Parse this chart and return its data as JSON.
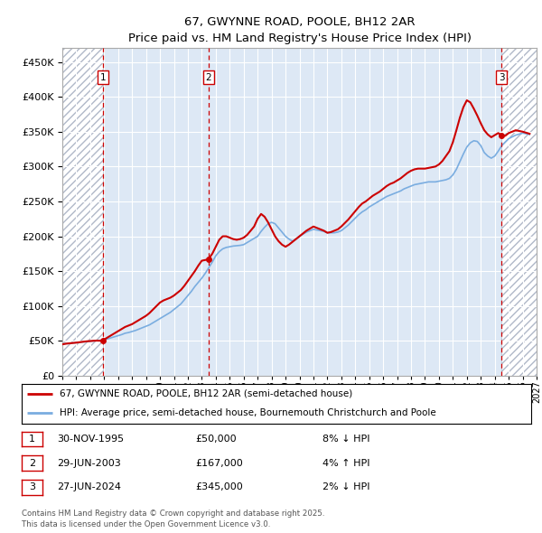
{
  "title": "67, GWYNNE ROAD, POOLE, BH12 2AR",
  "subtitle": "Price paid vs. HM Land Registry's House Price Index (HPI)",
  "ytick_values": [
    0,
    50000,
    100000,
    150000,
    200000,
    250000,
    300000,
    350000,
    400000,
    450000
  ],
  "ylim": [
    0,
    470000
  ],
  "xlim_start": 1993.0,
  "xlim_end": 2027.0,
  "hatch_left_end": 1995.92,
  "hatch_right_start": 2024.49,
  "bg_color": "#dde8f5",
  "hatch_facecolor": "#ffffff",
  "hatch_edgecolor": "#b0b8c8",
  "line1_color": "#cc0000",
  "line2_color": "#7aade0",
  "transaction_dates": [
    1995.92,
    2003.49,
    2024.49
  ],
  "transaction_prices": [
    50000,
    167000,
    345000
  ],
  "transaction_labels": [
    "1",
    "2",
    "3"
  ],
  "vline_color": "#cc0000",
  "legend_line1": "67, GWYNNE ROAD, POOLE, BH12 2AR (semi-detached house)",
  "legend_line2": "HPI: Average price, semi-detached house, Bournemouth Christchurch and Poole",
  "table_entries": [
    {
      "label": "1",
      "date": "30-NOV-1995",
      "price": "£50,000",
      "hpi": "8% ↓ HPI"
    },
    {
      "label": "2",
      "date": "29-JUN-2003",
      "price": "£167,000",
      "hpi": "4% ↑ HPI"
    },
    {
      "label": "3",
      "date": "27-JUN-2024",
      "price": "£345,000",
      "hpi": "2% ↓ HPI"
    }
  ],
  "footer": "Contains HM Land Registry data © Crown copyright and database right 2025.\nThis data is licensed under the Open Government Licence v3.0.",
  "hpi_x": [
    1993.0,
    1993.25,
    1993.5,
    1993.75,
    1994.0,
    1994.25,
    1994.5,
    1994.75,
    1995.0,
    1995.25,
    1995.5,
    1995.75,
    1996.0,
    1996.25,
    1996.5,
    1996.75,
    1997.0,
    1997.25,
    1997.5,
    1997.75,
    1998.0,
    1998.25,
    1998.5,
    1998.75,
    1999.0,
    1999.25,
    1999.5,
    1999.75,
    2000.0,
    2000.25,
    2000.5,
    2000.75,
    2001.0,
    2001.25,
    2001.5,
    2001.75,
    2002.0,
    2002.25,
    2002.5,
    2002.75,
    2003.0,
    2003.25,
    2003.5,
    2003.75,
    2004.0,
    2004.25,
    2004.5,
    2004.75,
    2005.0,
    2005.25,
    2005.5,
    2005.75,
    2006.0,
    2006.25,
    2006.5,
    2006.75,
    2007.0,
    2007.25,
    2007.5,
    2007.75,
    2008.0,
    2008.25,
    2008.5,
    2008.75,
    2009.0,
    2009.25,
    2009.5,
    2009.75,
    2010.0,
    2010.25,
    2010.5,
    2010.75,
    2011.0,
    2011.25,
    2011.5,
    2011.75,
    2012.0,
    2012.25,
    2012.5,
    2012.75,
    2013.0,
    2013.25,
    2013.5,
    2013.75,
    2014.0,
    2014.25,
    2014.5,
    2014.75,
    2015.0,
    2015.25,
    2015.5,
    2015.75,
    2016.0,
    2016.25,
    2016.5,
    2016.75,
    2017.0,
    2017.25,
    2017.5,
    2017.75,
    2018.0,
    2018.25,
    2018.5,
    2018.75,
    2019.0,
    2019.25,
    2019.5,
    2019.75,
    2020.0,
    2020.25,
    2020.5,
    2020.75,
    2021.0,
    2021.25,
    2021.5,
    2021.75,
    2022.0,
    2022.25,
    2022.5,
    2022.75,
    2023.0,
    2023.25,
    2023.5,
    2023.75,
    2024.0,
    2024.25,
    2024.5,
    2024.75,
    2025.0,
    2025.5,
    2026.0,
    2026.5
  ],
  "hpi_y": [
    45000,
    46000,
    46500,
    47000,
    47500,
    48000,
    48500,
    49000,
    49500,
    50000,
    50500,
    51000,
    52000,
    53000,
    54500,
    56000,
    57500,
    59000,
    61000,
    62000,
    63500,
    65000,
    67000,
    69000,
    71000,
    73000,
    76000,
    79000,
    82000,
    85000,
    88000,
    91000,
    95000,
    99000,
    103000,
    109000,
    115000,
    121000,
    128000,
    134000,
    140000,
    147000,
    155000,
    163000,
    172000,
    178000,
    182000,
    184000,
    185000,
    186000,
    186500,
    187000,
    188000,
    191000,
    194000,
    197000,
    200000,
    207000,
    213000,
    218000,
    220000,
    218000,
    212000,
    206000,
    200000,
    196000,
    193000,
    196000,
    200000,
    203000,
    206000,
    208000,
    210000,
    209000,
    208000,
    207000,
    205000,
    205000,
    205000,
    206000,
    208000,
    212000,
    216000,
    221000,
    226000,
    231000,
    235000,
    238000,
    242000,
    245000,
    248000,
    251000,
    254000,
    257000,
    259000,
    261000,
    263000,
    265000,
    268000,
    270000,
    272000,
    274000,
    275000,
    276000,
    277000,
    278000,
    278000,
    278000,
    279000,
    280000,
    281000,
    283000,
    288000,
    296000,
    307000,
    318000,
    328000,
    334000,
    337000,
    336000,
    330000,
    320000,
    315000,
    312000,
    315000,
    322000,
    330000,
    335000,
    340000,
    345000,
    348000,
    346000
  ],
  "price_x": [
    1993.0,
    1993.25,
    1993.5,
    1993.75,
    1994.0,
    1994.25,
    1994.5,
    1994.75,
    1995.0,
    1995.25,
    1995.5,
    1995.75,
    1995.92,
    1996.0,
    1996.25,
    1996.5,
    1996.75,
    1997.0,
    1997.25,
    1997.5,
    1997.75,
    1998.0,
    1998.25,
    1998.5,
    1998.75,
    1999.0,
    1999.25,
    1999.5,
    1999.75,
    2000.0,
    2000.25,
    2000.5,
    2000.75,
    2001.0,
    2001.25,
    2001.5,
    2001.75,
    2002.0,
    2002.25,
    2002.5,
    2002.75,
    2003.0,
    2003.25,
    2003.49,
    2003.5,
    2003.75,
    2004.0,
    2004.25,
    2004.5,
    2004.75,
    2005.0,
    2005.25,
    2005.5,
    2005.75,
    2006.0,
    2006.25,
    2006.5,
    2006.75,
    2007.0,
    2007.25,
    2007.5,
    2007.75,
    2008.0,
    2008.25,
    2008.5,
    2008.75,
    2009.0,
    2009.25,
    2009.5,
    2009.75,
    2010.0,
    2010.25,
    2010.5,
    2010.75,
    2011.0,
    2011.25,
    2011.5,
    2011.75,
    2012.0,
    2012.25,
    2012.5,
    2012.75,
    2013.0,
    2013.25,
    2013.5,
    2013.75,
    2014.0,
    2014.25,
    2014.5,
    2014.75,
    2015.0,
    2015.25,
    2015.5,
    2015.75,
    2016.0,
    2016.25,
    2016.5,
    2016.75,
    2017.0,
    2017.25,
    2017.5,
    2017.75,
    2018.0,
    2018.25,
    2018.5,
    2018.75,
    2019.0,
    2019.25,
    2019.5,
    2019.75,
    2020.0,
    2020.25,
    2020.5,
    2020.75,
    2021.0,
    2021.25,
    2021.5,
    2021.75,
    2022.0,
    2022.25,
    2022.5,
    2022.75,
    2023.0,
    2023.25,
    2023.5,
    2023.75,
    2024.0,
    2024.25,
    2024.49,
    2024.75,
    2025.0,
    2025.5,
    2026.0,
    2026.5
  ],
  "price_y": [
    45000,
    46000,
    46500,
    47000,
    47500,
    48200,
    48800,
    49400,
    49800,
    50200,
    50400,
    50200,
    50000,
    52000,
    55000,
    58000,
    61000,
    64000,
    67000,
    70000,
    72000,
    74000,
    77000,
    80000,
    83000,
    86000,
    90000,
    95000,
    100000,
    105000,
    108000,
    110000,
    112000,
    115000,
    119000,
    123000,
    129000,
    136000,
    143000,
    150000,
    158000,
    165000,
    166000,
    167000,
    168000,
    175000,
    185000,
    195000,
    200000,
    200000,
    198000,
    196000,
    195000,
    196000,
    198000,
    202000,
    208000,
    214000,
    225000,
    232000,
    228000,
    220000,
    210000,
    200000,
    193000,
    188000,
    185000,
    188000,
    192000,
    196000,
    200000,
    204000,
    208000,
    211000,
    214000,
    212000,
    210000,
    208000,
    205000,
    206000,
    208000,
    210000,
    214000,
    219000,
    224000,
    230000,
    236000,
    242000,
    247000,
    250000,
    254000,
    258000,
    261000,
    264000,
    268000,
    272000,
    275000,
    277000,
    280000,
    283000,
    287000,
    291000,
    294000,
    296000,
    297000,
    297000,
    297000,
    298000,
    299000,
    300000,
    303000,
    308000,
    315000,
    322000,
    335000,
    352000,
    370000,
    385000,
    395000,
    392000,
    383000,
    373000,
    362000,
    352000,
    346000,
    342000,
    345000,
    348000,
    345000,
    344000,
    348000,
    352000,
    350000,
    347000
  ]
}
